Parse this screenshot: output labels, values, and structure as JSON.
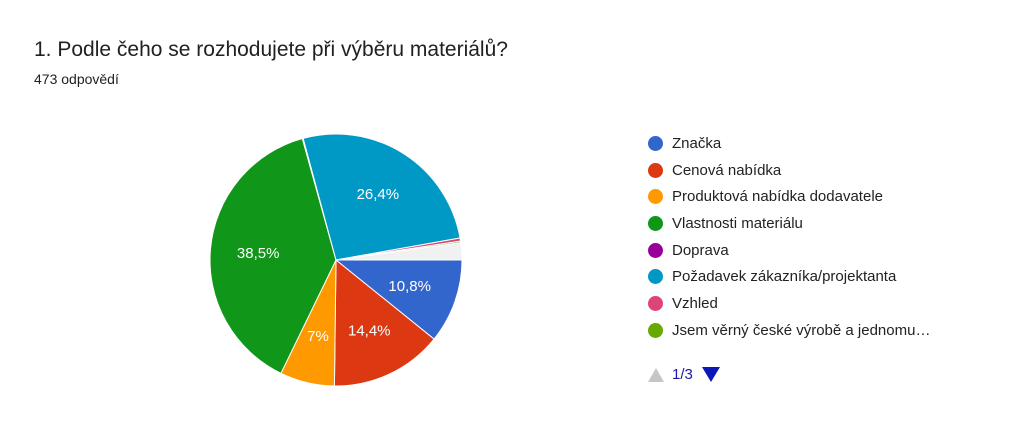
{
  "header": {
    "title": "1. Podle čeho se rozhodujete při výběru materiálů?",
    "responses": "473 odpovědí"
  },
  "chart_data": {
    "type": "pie",
    "slices": [
      {
        "name": "Značka",
        "value": 10.8,
        "label": "10,8%",
        "color": "#3366cc"
      },
      {
        "name": "Cenová nabídka",
        "value": 14.4,
        "label": "14,4%",
        "color": "#dc3912"
      },
      {
        "name": "Produktová nabídka dodavatele",
        "value": 7,
        "label": "7%",
        "color": "#ff9900"
      },
      {
        "name": "Vlastnosti materiálu",
        "value": 38.5,
        "label": "38,5%",
        "color": "#109618"
      },
      {
        "name": "Doprava",
        "value": 0.1,
        "label": "",
        "color": "#990099"
      },
      {
        "name": "Požadavek zákazníka/projektanta",
        "value": 26.4,
        "label": "26,4%",
        "color": "#0099c6"
      },
      {
        "name": "Vzhled",
        "value": 0.4,
        "label": "",
        "color": "#dd4477"
      },
      {
        "name": "Jsem věrný české výrobě a jednomu…",
        "value": 0.2,
        "label": "",
        "color": "#66aa00"
      },
      {
        "name": "",
        "value": 2.2,
        "label": "",
        "color": "#f1f1f1"
      }
    ],
    "legend_position": "right"
  },
  "pager": {
    "label": "1/3"
  }
}
